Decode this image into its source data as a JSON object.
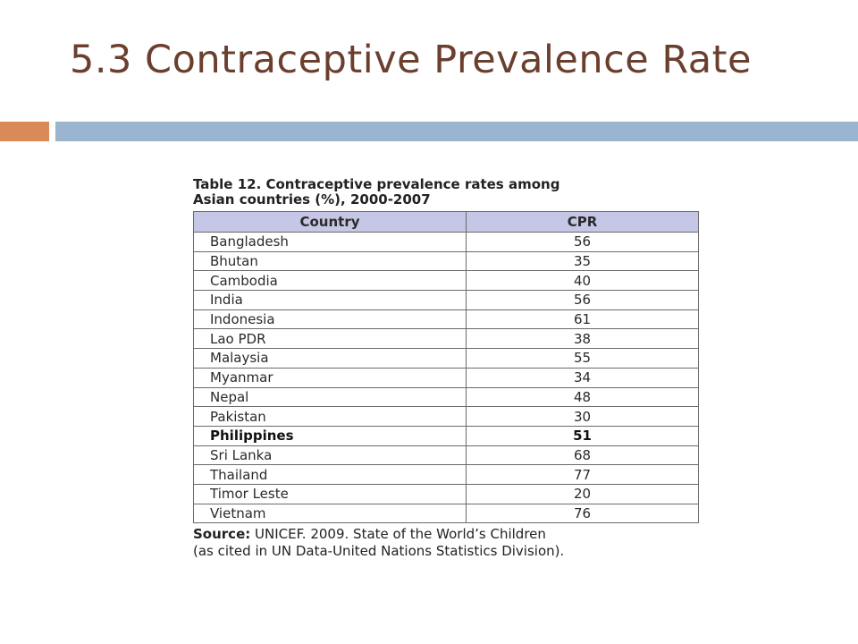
{
  "slide": {
    "title": "5.3 Contraceptive Prevalence Rate"
  },
  "colors": {
    "title": "#6b3f2e",
    "accent_orange": "#d98a56",
    "accent_blue": "#9bb4cf",
    "table_header": "#c6c6e6"
  },
  "table": {
    "caption_line1": "Table 12. Contraceptive prevalence rates among",
    "caption_line2": "Asian countries (%), 2000-2007",
    "headers": [
      "Country",
      "CPR"
    ],
    "rows": [
      {
        "country": "Bangladesh",
        "cpr": "56"
      },
      {
        "country": "Bhutan",
        "cpr": "35"
      },
      {
        "country": "Cambodia",
        "cpr": "40"
      },
      {
        "country": "India",
        "cpr": "56"
      },
      {
        "country": "Indonesia",
        "cpr": "61"
      },
      {
        "country": "Lao PDR",
        "cpr": "38"
      },
      {
        "country": "Malaysia",
        "cpr": "55"
      },
      {
        "country": "Myanmar",
        "cpr": "34"
      },
      {
        "country": "Nepal",
        "cpr": "48"
      },
      {
        "country": "Pakistan",
        "cpr": "30"
      },
      {
        "country": "Philippines",
        "cpr": "51",
        "bold": true
      },
      {
        "country": "Sri Lanka",
        "cpr": "68"
      },
      {
        "country": "Thailand",
        "cpr": "77"
      },
      {
        "country": "Timor Leste",
        "cpr": "20"
      },
      {
        "country": "Vietnam",
        "cpr": "76"
      }
    ]
  },
  "source": {
    "label": "Source:",
    "line1": " UNICEF. 2009. State of the World’s Children",
    "line2": "(as cited in UN Data-United Nations Statistics Division)."
  }
}
